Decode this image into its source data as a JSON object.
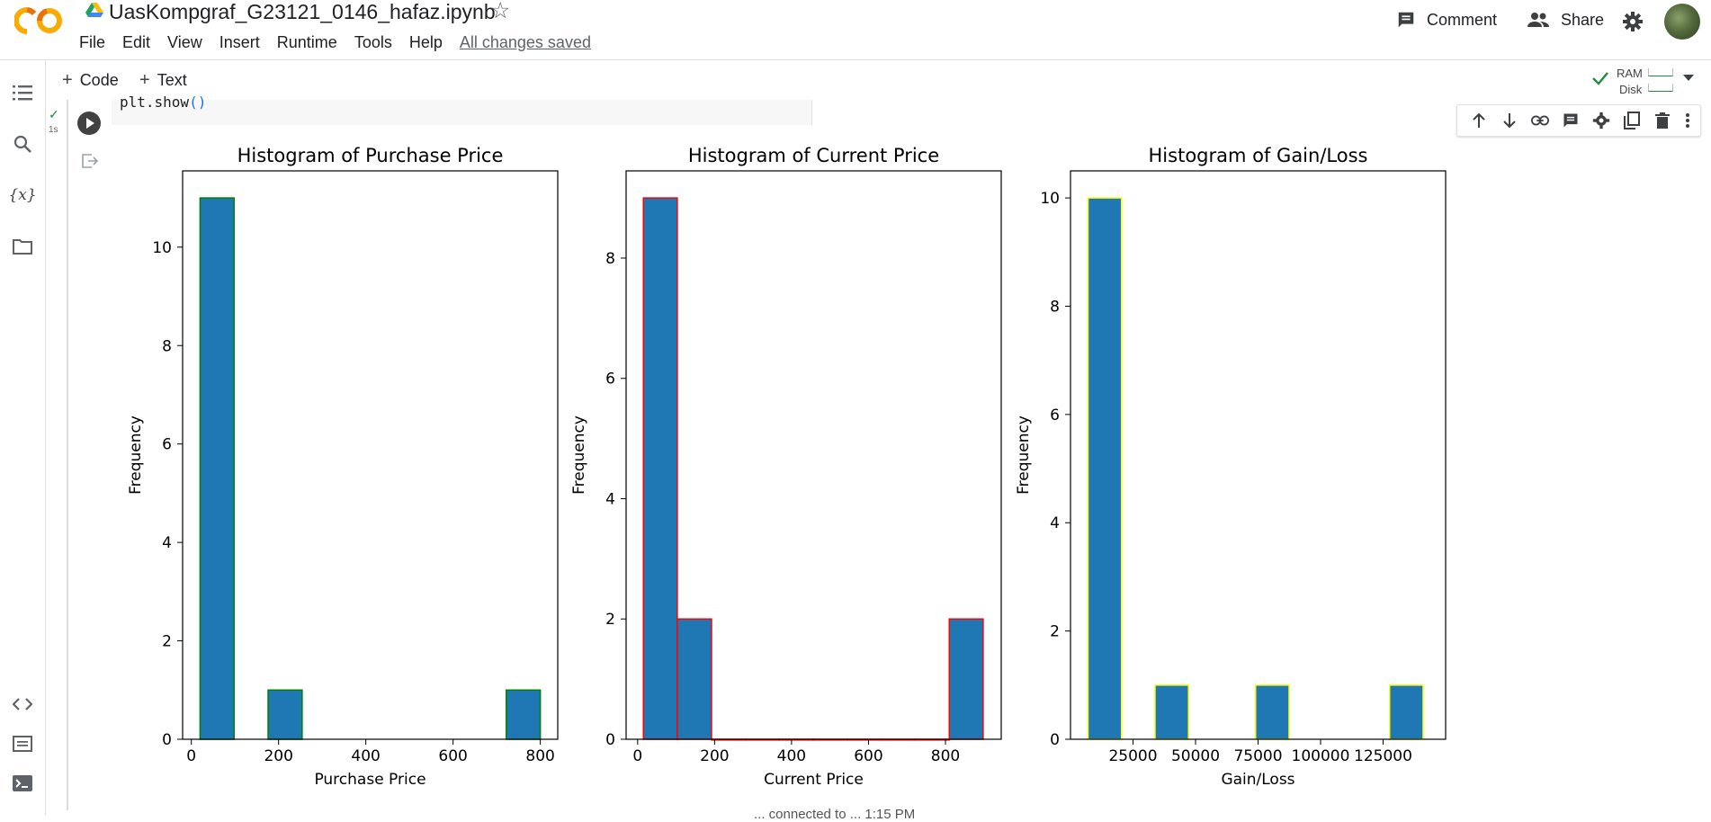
{
  "header": {
    "notebook_title": "UasKompgraf_G23121_0146_hafaz.ipynb",
    "menu": [
      "File",
      "Edit",
      "View",
      "Insert",
      "Runtime",
      "Tools",
      "Help"
    ],
    "save_status": "All changes saved",
    "comment_label": "Comment",
    "share_label": "Share"
  },
  "toolbar": {
    "code_label": "Code",
    "text_label": "Text",
    "ram_label": "RAM",
    "disk_label": "Disk"
  },
  "cell": {
    "code_text": "plt.show",
    "code_paren": "()",
    "exec_time": "1s"
  },
  "footer": {
    "partial_status": "... connected to ... 1:15 PM"
  },
  "colors": {
    "bar_fill": "#1f77b4",
    "edge_purchase": "#008000",
    "edge_current": "#ff0000",
    "edge_gain": "#ffff00"
  },
  "chart_data": [
    {
      "type": "bar",
      "title": "Histogram of Purchase Price",
      "xlabel": "Purchase Price",
      "ylabel": "Frequency",
      "xlim": [
        -20,
        840
      ],
      "ylim": [
        0,
        11.55
      ],
      "xticks": [
        0,
        200,
        400,
        600,
        800
      ],
      "yticks": [
        0,
        2,
        4,
        6,
        8,
        10
      ],
      "bins": [
        [
          20,
          98,
          11
        ],
        [
          176,
          254,
          1
        ],
        [
          722,
          800,
          1
        ]
      ],
      "edge_color": "green"
    },
    {
      "type": "bar",
      "title": "Histogram of Current Price",
      "xlabel": "Current Price",
      "ylabel": "Frequency",
      "xlim": [
        -30,
        945
      ],
      "ylim": [
        0,
        9.45
      ],
      "xticks": [
        0,
        200,
        400,
        600,
        800
      ],
      "yticks": [
        0,
        2,
        4,
        6,
        8
      ],
      "bins": [
        [
          15,
          103,
          9
        ],
        [
          103,
          192,
          2
        ],
        [
          192,
          280,
          0
        ],
        [
          280,
          368,
          0
        ],
        [
          368,
          456,
          0
        ],
        [
          456,
          545,
          0
        ],
        [
          545,
          633,
          0
        ],
        [
          633,
          721,
          0
        ],
        [
          721,
          810,
          0
        ],
        [
          810,
          898,
          2
        ]
      ],
      "edge_color": "red"
    },
    {
      "type": "bar",
      "title": "Histogram of Gain/Loss",
      "xlabel": "Gain/Loss",
      "ylabel": "Frequency",
      "xlim": [
        0,
        150000
      ],
      "ylim": [
        0,
        10.5
      ],
      "xticks": [
        25000,
        50000,
        75000,
        100000,
        125000
      ],
      "yticks": [
        0,
        2,
        4,
        6,
        8,
        10
      ],
      "bins": [
        [
          7000,
          20400,
          10
        ],
        [
          33800,
          47200,
          1
        ],
        [
          74000,
          87400,
          1
        ],
        [
          127600,
          141000,
          1
        ]
      ],
      "edge_color": "yellow"
    }
  ]
}
